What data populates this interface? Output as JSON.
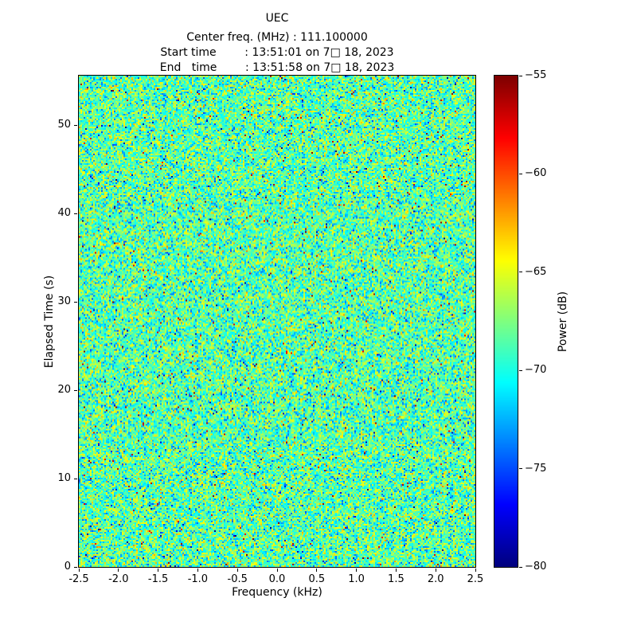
{
  "chart_data": {
    "type": "heatmap",
    "title": "UEC",
    "subtitle_lines": [
      "Center freq. (MHz) : 111.100000",
      "Start time        : 13:51:01 on 7□ 18, 2023",
      "End   time        : 13:51:58 on 7□ 18, 2023"
    ],
    "xlabel": "Frequency (kHz)",
    "ylabel": "Elapsed Time (s)",
    "xlim": [
      -2.5,
      2.5
    ],
    "ylim": [
      0,
      55.6
    ],
    "xticks": [
      -2.5,
      -2.0,
      -1.5,
      -1.0,
      -0.5,
      0.0,
      0.5,
      1.0,
      1.5,
      2.0,
      2.5
    ],
    "xtick_labels": [
      "-2.5",
      "-2.0",
      "-1.5",
      "-1.0",
      "-0.5",
      "0.0",
      "0.5",
      "1.0",
      "1.5",
      "2.0",
      "2.5"
    ],
    "yticks": [
      0,
      10,
      20,
      30,
      40,
      50
    ],
    "ytick_labels": [
      "0",
      "10",
      "20",
      "30",
      "40",
      "50"
    ],
    "colorbar": {
      "label": "Power (dB)",
      "min": -80,
      "max": -55,
      "ticks": [
        -55,
        -60,
        -65,
        -70,
        -75,
        -80
      ],
      "tick_labels": [
        "−55",
        "−60",
        "−65",
        "−70",
        "−75",
        "−80"
      ],
      "colormap": "jet"
    },
    "noise": {
      "description": "uniform random noise spectrogram (no visible signal), mostly cyan-green with yellow speckles, rare red/orange and dark-blue outliers",
      "mean_db": -68.5,
      "std_db": 2.6,
      "outlier_fraction": 0.01,
      "seed": 42,
      "cols": 249,
      "rows": 309
    },
    "grid": false,
    "legend_position": "none"
  }
}
